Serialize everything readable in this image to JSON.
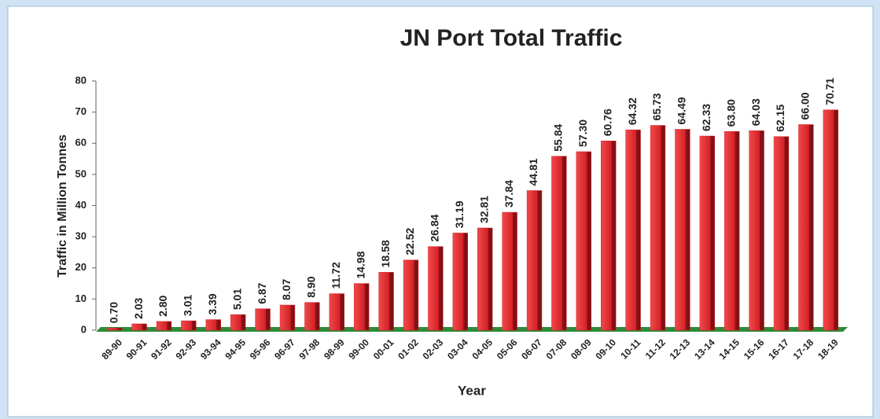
{
  "chart_data": {
    "type": "bar",
    "title": "JN Port Total Traffic",
    "ylabel": "Traffic in Million Tonnes",
    "xlabel": "Year",
    "categories": [
      "89-90",
      "90-91",
      "91-92",
      "92-93",
      "93-94",
      "94-95",
      "95-96",
      "96-97",
      "97-98",
      "98-99",
      "99-00",
      "00-01",
      "01-02",
      "02-03",
      "03-04",
      "04-05",
      "05-06",
      "06-07",
      "07-08",
      "08-09",
      "09-10",
      "10-11",
      "11-12",
      "12-13",
      "13-14",
      "14-15",
      "15-16",
      "16-17",
      "17-18",
      "18-19"
    ],
    "values": [
      0.7,
      2.03,
      2.8,
      3.01,
      3.39,
      5.01,
      6.87,
      8.07,
      8.9,
      11.72,
      14.98,
      18.58,
      22.52,
      26.84,
      31.19,
      32.81,
      37.84,
      44.81,
      55.84,
      57.3,
      60.76,
      64.32,
      65.73,
      64.49,
      62.33,
      63.8,
      64.03,
      62.15,
      66,
      70.71
    ],
    "value_labels": [
      "0.70",
      "2.03",
      "2.80",
      "3.01",
      "3.39",
      "5.01",
      "6.87",
      "8.07",
      "8.90",
      "11.72",
      "14.98",
      "18.58",
      "22.52",
      "26.84",
      "31.19",
      "32.81",
      "37.84",
      "44.81",
      "55.84",
      "57.30",
      "60.76",
      "64.32",
      "65.73",
      "64.49",
      "62.33",
      "63.80",
      "64.03",
      "62.15",
      "66.00",
      "70.71"
    ],
    "color": "#d42027",
    "ylim": [
      0,
      80
    ],
    "yticks": [
      0,
      10,
      20,
      30,
      40,
      50,
      60,
      70,
      80
    ]
  }
}
